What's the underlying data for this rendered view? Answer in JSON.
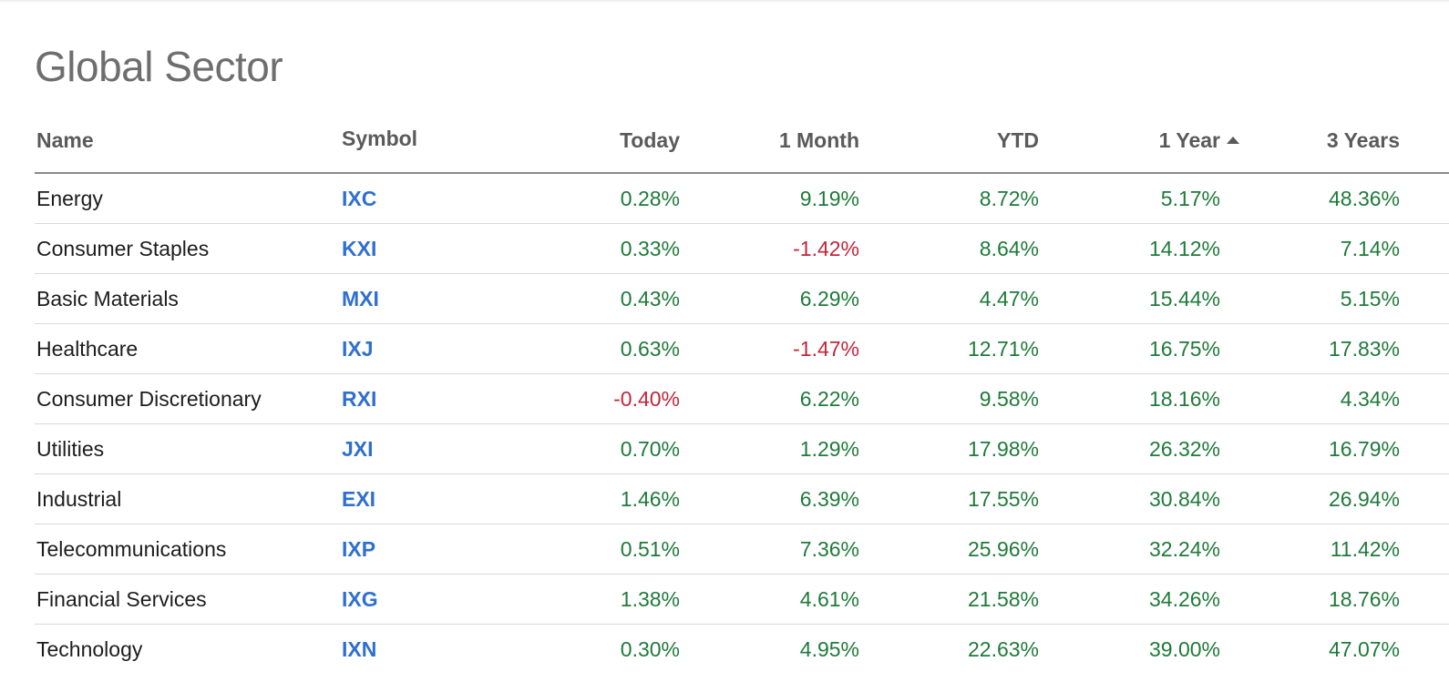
{
  "title": "Global Sector",
  "columns": {
    "name": "Name",
    "symbol": "Symbol",
    "today": "Today",
    "month": "1 Month",
    "ytd": "YTD",
    "year1": "1 Year",
    "year3": "3 Years"
  },
  "sort": {
    "column": "1 Year",
    "direction": "ascending",
    "icon": "sort-ascending-icon"
  },
  "colors": {
    "positive": "#1f7a3a",
    "negative": "#c3263a",
    "symbol": "#2f6fd1"
  },
  "rows": [
    {
      "name": "Energy",
      "symbol": "IXC",
      "today": "0.28%",
      "month": "9.19%",
      "ytd": "8.72%",
      "year1": "5.17%",
      "year3": "48.36%"
    },
    {
      "name": "Consumer Staples",
      "symbol": "KXI",
      "today": "0.33%",
      "month": "-1.42%",
      "ytd": "8.64%",
      "year1": "14.12%",
      "year3": "7.14%"
    },
    {
      "name": "Basic Materials",
      "symbol": "MXI",
      "today": "0.43%",
      "month": "6.29%",
      "ytd": "4.47%",
      "year1": "15.44%",
      "year3": "5.15%"
    },
    {
      "name": "Healthcare",
      "symbol": "IXJ",
      "today": "0.63%",
      "month": "-1.47%",
      "ytd": "12.71%",
      "year1": "16.75%",
      "year3": "17.83%"
    },
    {
      "name": "Consumer Discretionary",
      "symbol": "RXI",
      "today": "-0.40%",
      "month": "6.22%",
      "ytd": "9.58%",
      "year1": "18.16%",
      "year3": "4.34%"
    },
    {
      "name": "Utilities",
      "symbol": "JXI",
      "today": "0.70%",
      "month": "1.29%",
      "ytd": "17.98%",
      "year1": "26.32%",
      "year3": "16.79%"
    },
    {
      "name": "Industrial",
      "symbol": "EXI",
      "today": "1.46%",
      "month": "6.39%",
      "ytd": "17.55%",
      "year1": "30.84%",
      "year3": "26.94%"
    },
    {
      "name": "Telecommunications",
      "symbol": "IXP",
      "today": "0.51%",
      "month": "7.36%",
      "ytd": "25.96%",
      "year1": "32.24%",
      "year3": "11.42%"
    },
    {
      "name": "Financial Services",
      "symbol": "IXG",
      "today": "1.38%",
      "month": "4.61%",
      "ytd": "21.58%",
      "year1": "34.26%",
      "year3": "18.76%"
    },
    {
      "name": "Technology",
      "symbol": "IXN",
      "today": "0.30%",
      "month": "4.95%",
      "ytd": "22.63%",
      "year1": "39.00%",
      "year3": "47.07%"
    }
  ]
}
